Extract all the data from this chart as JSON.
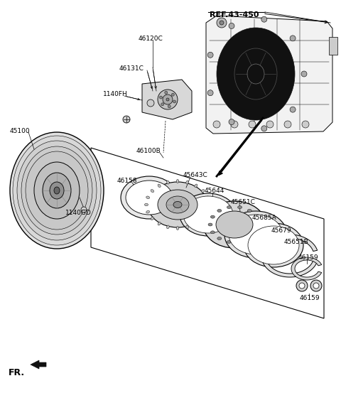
{
  "background_color": "#ffffff",
  "line_color": "#000000",
  "ref_label": "REF.43-450",
  "fr_label": "FR.",
  "label_46120C": "46120C",
  "label_46131C": "46131C",
  "label_1140FH": "1140FH",
  "label_45100": "45100",
  "label_1140GD": "1140GD",
  "label_46100B": "46100B",
  "label_46158": "46158",
  "label_45643C": "45643C",
  "label_45644": "45644",
  "label_45651C": "45651C",
  "label_45685A": "45685A",
  "label_45679": "45679",
  "label_45651B": "45651B",
  "label_46159a": "46159",
  "label_46159b": "46159"
}
